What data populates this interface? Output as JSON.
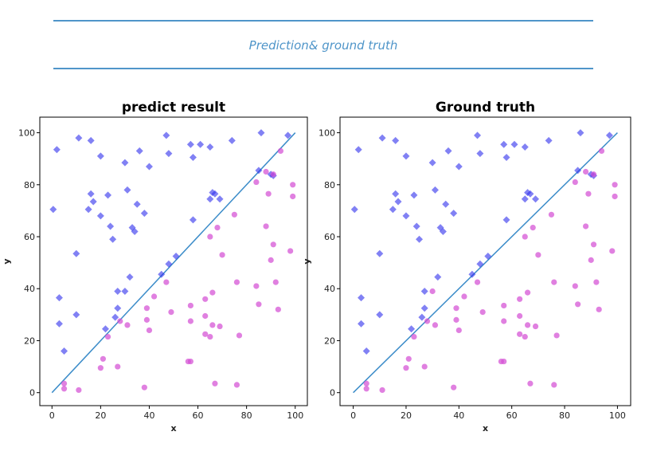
{
  "header": {
    "caption": "Prediction& ground truth"
  },
  "chart_data": [
    {
      "type": "scatter",
      "title": "predict result",
      "xlabel": "x",
      "ylabel": "y",
      "xlim": [
        -5,
        105
      ],
      "ylim": [
        -5,
        106
      ],
      "xticks": [
        0,
        20,
        40,
        60,
        80,
        100
      ],
      "yticks": [
        0,
        20,
        40,
        60,
        80,
        100
      ],
      "grid": false,
      "reference_line": {
        "x": [
          0,
          100
        ],
        "y": [
          0,
          100
        ],
        "color": "#3b8cc9"
      },
      "series": [
        {
          "marker": "diamond",
          "color": "#3333ee",
          "points": [
            [
              0.5,
              70.5
            ],
            [
              2,
              93.5
            ],
            [
              3,
              36.5
            ],
            [
              3,
              26.5
            ],
            [
              5,
              16
            ],
            [
              10,
              53.5
            ],
            [
              10,
              30
            ],
            [
              11,
              98
            ],
            [
              15,
              70.5
            ],
            [
              16,
              76.5
            ],
            [
              16,
              97
            ],
            [
              17,
              73.5
            ],
            [
              20,
              68
            ],
            [
              20,
              91
            ],
            [
              22,
              24.5
            ],
            [
              23,
              76
            ],
            [
              24,
              64
            ],
            [
              25,
              59
            ],
            [
              26,
              29
            ],
            [
              27,
              32.5
            ],
            [
              27,
              39
            ],
            [
              30,
              88.5
            ],
            [
              30,
              39
            ],
            [
              31,
              78
            ],
            [
              32,
              44.5
            ],
            [
              33,
              63.5
            ],
            [
              34,
              62
            ],
            [
              35,
              72.5
            ],
            [
              36,
              93
            ],
            [
              38,
              69
            ],
            [
              40,
              87
            ],
            [
              45,
              45.5
            ],
            [
              47,
              99
            ],
            [
              48,
              49.5
            ],
            [
              48,
              92
            ],
            [
              51,
              52.5
            ],
            [
              57,
              95.5
            ],
            [
              58,
              90.5
            ],
            [
              58,
              66.5
            ],
            [
              61,
              95.5
            ],
            [
              65,
              94.5
            ],
            [
              65,
              74.5
            ],
            [
              66,
              77
            ],
            [
              67,
              76.5
            ],
            [
              69,
              74.5
            ],
            [
              74,
              97
            ],
            [
              85,
              85.5
            ],
            [
              86,
              100
            ],
            [
              90,
              84
            ],
            [
              91,
              83.5
            ],
            [
              97,
              99
            ]
          ]
        },
        {
          "marker": "circle",
          "color": "#d44fd4",
          "points": [
            [
              5,
              3.5
            ],
            [
              5,
              1.5
            ],
            [
              11,
              1
            ],
            [
              20,
              9.5
            ],
            [
              21,
              13
            ],
            [
              23,
              21.5
            ],
            [
              27,
              10
            ],
            [
              28,
              27.5
            ],
            [
              31,
              26
            ],
            [
              38,
              2
            ],
            [
              39,
              32.5
            ],
            [
              39,
              28
            ],
            [
              40,
              24
            ],
            [
              42,
              37
            ],
            [
              47,
              42.5
            ],
            [
              49,
              31
            ],
            [
              56,
              12
            ],
            [
              57,
              12
            ],
            [
              57,
              33.5
            ],
            [
              57,
              27.5
            ],
            [
              63,
              36
            ],
            [
              63,
              29.5
            ],
            [
              63,
              22.5
            ],
            [
              65,
              21.5
            ],
            [
              65,
              60
            ],
            [
              66,
              38.5
            ],
            [
              66,
              26
            ],
            [
              67,
              3.5
            ],
            [
              68,
              63.5
            ],
            [
              69,
              25.5
            ],
            [
              70,
              53
            ],
            [
              75,
              68.5
            ],
            [
              76,
              3
            ],
            [
              76,
              42.5
            ],
            [
              77,
              22
            ],
            [
              84,
              81
            ],
            [
              84,
              41
            ],
            [
              85,
              34
            ],
            [
              88,
              85
            ],
            [
              88,
              64
            ],
            [
              89,
              76.5
            ],
            [
              90,
              51
            ],
            [
              91,
              57
            ],
            [
              91,
              84
            ],
            [
              92,
              42.5
            ],
            [
              93,
              32
            ],
            [
              94,
              93
            ],
            [
              98,
              54.5
            ],
            [
              99,
              80
            ],
            [
              99,
              75.5
            ]
          ]
        }
      ]
    },
    {
      "type": "scatter",
      "title": "Ground truth",
      "xlabel": "x",
      "ylabel": "y",
      "xlim": [
        -5,
        105
      ],
      "ylim": [
        -5,
        106
      ],
      "xticks": [
        0,
        20,
        40,
        60,
        80,
        100
      ],
      "yticks": [
        0,
        20,
        40,
        60,
        80,
        100
      ],
      "grid": false,
      "reference_line": {
        "x": [
          0,
          100
        ],
        "y": [
          0,
          100
        ],
        "color": "#3b8cc9"
      },
      "series": [
        {
          "marker": "diamond",
          "color": "#3333ee",
          "points": [
            [
              0.5,
              70.5
            ],
            [
              2,
              93.5
            ],
            [
              3,
              36.5
            ],
            [
              3,
              26.5
            ],
            [
              5,
              16
            ],
            [
              10,
              53.5
            ],
            [
              10,
              30
            ],
            [
              11,
              98
            ],
            [
              15,
              70.5
            ],
            [
              16,
              76.5
            ],
            [
              16,
              97
            ],
            [
              17,
              73.5
            ],
            [
              20,
              68
            ],
            [
              20,
              91
            ],
            [
              22,
              24.5
            ],
            [
              23,
              76
            ],
            [
              24,
              64
            ],
            [
              25,
              59
            ],
            [
              26,
              29
            ],
            [
              27,
              32.5
            ],
            [
              27,
              39
            ],
            [
              30,
              88.5
            ],
            [
              31,
              78
            ],
            [
              32,
              44.5
            ],
            [
              33,
              63.5
            ],
            [
              34,
              62
            ],
            [
              35,
              72.5
            ],
            [
              36,
              93
            ],
            [
              38,
              69
            ],
            [
              40,
              87
            ],
            [
              45,
              45.5
            ],
            [
              47,
              99
            ],
            [
              48,
              49.5
            ],
            [
              48,
              92
            ],
            [
              51,
              52.5
            ],
            [
              57,
              95.5
            ],
            [
              58,
              90.5
            ],
            [
              58,
              66.5
            ],
            [
              61,
              95.5
            ],
            [
              65,
              94.5
            ],
            [
              65,
              74.5
            ],
            [
              66,
              77
            ],
            [
              67,
              76.5
            ],
            [
              69,
              74.5
            ],
            [
              74,
              97
            ],
            [
              85,
              85.5
            ],
            [
              86,
              100
            ],
            [
              90,
              84
            ],
            [
              91,
              83.5
            ],
            [
              97,
              99
            ]
          ]
        },
        {
          "marker": "circle",
          "color": "#d44fd4",
          "points": [
            [
              5,
              3.5
            ],
            [
              5,
              1.5
            ],
            [
              11,
              1
            ],
            [
              20,
              9.5
            ],
            [
              21,
              13
            ],
            [
              23,
              21.5
            ],
            [
              27,
              10
            ],
            [
              28,
              27.5
            ],
            [
              30,
              39
            ],
            [
              31,
              26
            ],
            [
              38,
              2
            ],
            [
              39,
              32.5
            ],
            [
              39,
              28
            ],
            [
              40,
              24
            ],
            [
              42,
              37
            ],
            [
              47,
              42.5
            ],
            [
              49,
              31
            ],
            [
              56,
              12
            ],
            [
              57,
              12
            ],
            [
              57,
              33.5
            ],
            [
              57,
              27.5
            ],
            [
              63,
              36
            ],
            [
              63,
              29.5
            ],
            [
              63,
              22.5
            ],
            [
              65,
              21.5
            ],
            [
              65,
              60
            ],
            [
              66,
              38.5
            ],
            [
              66,
              26
            ],
            [
              67,
              3.5
            ],
            [
              68,
              63.5
            ],
            [
              69,
              25.5
            ],
            [
              70,
              53
            ],
            [
              75,
              68.5
            ],
            [
              76,
              3
            ],
            [
              76,
              42.5
            ],
            [
              77,
              22
            ],
            [
              84,
              81
            ],
            [
              84,
              41
            ],
            [
              85,
              34
            ],
            [
              88,
              85
            ],
            [
              88,
              64
            ],
            [
              89,
              76.5
            ],
            [
              90,
              51
            ],
            [
              91,
              57
            ],
            [
              91,
              84
            ],
            [
              92,
              42.5
            ],
            [
              93,
              32
            ],
            [
              94,
              93
            ],
            [
              98,
              54.5
            ],
            [
              99,
              80
            ],
            [
              99,
              75.5
            ]
          ]
        }
      ]
    }
  ]
}
